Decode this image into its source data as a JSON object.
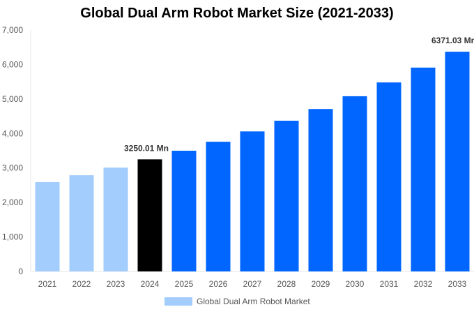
{
  "chart_data": {
    "type": "bar",
    "title": "Global Dual Arm Robot Market Size (2021-2033)",
    "categories": [
      "2021",
      "2022",
      "2023",
      "2024",
      "2025",
      "2026",
      "2027",
      "2028",
      "2029",
      "2030",
      "2031",
      "2032",
      "2033"
    ],
    "series": [
      {
        "name": "Global Dual Arm Robot Market",
        "values": [
          2590,
          2790,
          3010,
          3250.01,
          3500,
          3760,
          4060,
          4370,
          4710,
          5080,
          5480,
          5910,
          6371.03
        ]
      }
    ],
    "data_labels": [
      {
        "category": "2024",
        "text": "3250.01 Mn"
      },
      {
        "category": "2033",
        "text": "6371.03 Mn"
      }
    ],
    "ylim": [
      0,
      7000
    ],
    "yticks": [
      0,
      1000,
      2000,
      3000,
      4000,
      5000,
      6000,
      7000
    ],
    "ytick_labels": [
      "0",
      "1,000",
      "2,000",
      "3,000",
      "4,000",
      "5,000",
      "6,000",
      "7,000"
    ],
    "grid": false,
    "legend": "bottom",
    "colors": {
      "historical": "#a3cdfc",
      "current": "#000000",
      "forecast": "#0066ff"
    },
    "color_by_category": [
      "historical",
      "historical",
      "historical",
      "current",
      "forecast",
      "forecast",
      "forecast",
      "forecast",
      "forecast",
      "forecast",
      "forecast",
      "forecast",
      "forecast"
    ]
  }
}
